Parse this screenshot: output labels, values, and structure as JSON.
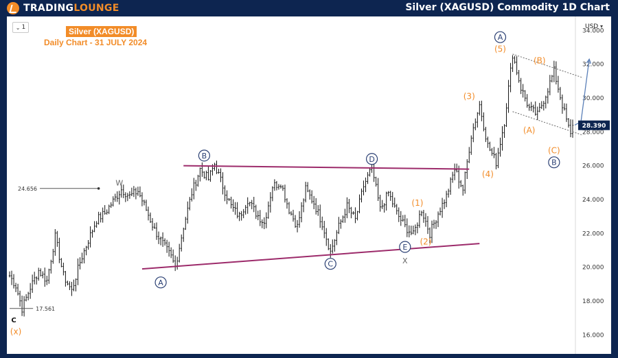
{
  "header": {
    "logo_word1": "TRADING",
    "logo_word2": "LOUNGE",
    "title": "Silver (XAGUSD) Commodity 1D Chart"
  },
  "chart_data": {
    "type": "candlestick",
    "title": "Silver (XAGUSD)",
    "subtitle": "Daily Chart - 31 JULY 2024",
    "interval": "1",
    "currency": "USD",
    "ylim": [
      15.2,
      34.5
    ],
    "y_ticks": [
      "34.000",
      "32.000",
      "30.000",
      "28.000",
      "26.000",
      "24.000",
      "22.000",
      "20.000",
      "18.000",
      "16.000"
    ],
    "y_tick_values": [
      34,
      32,
      30,
      28,
      26,
      24,
      22,
      20,
      18,
      16
    ],
    "last_price": 28.39,
    "last_price_label": "28.390",
    "price_path": [
      {
        "i": 0,
        "v": 19.5
      },
      {
        "i": 3,
        "v": 18.9
      },
      {
        "i": 6,
        "v": 17.56
      },
      {
        "i": 10,
        "v": 18.8
      },
      {
        "i": 14,
        "v": 19.8
      },
      {
        "i": 18,
        "v": 19.2
      },
      {
        "i": 22,
        "v": 21.8
      },
      {
        "i": 26,
        "v": 19.5
      },
      {
        "i": 30,
        "v": 18.6
      },
      {
        "i": 34,
        "v": 20.3
      },
      {
        "i": 38,
        "v": 21.6
      },
      {
        "i": 42,
        "v": 22.8
      },
      {
        "i": 46,
        "v": 23.2
      },
      {
        "i": 50,
        "v": 23.9
      },
      {
        "i": 54,
        "v": 24.6
      },
      {
        "i": 58,
        "v": 24.2
      },
      {
        "i": 62,
        "v": 24.5
      },
      {
        "i": 66,
        "v": 23.4
      },
      {
        "i": 70,
        "v": 22.2
      },
      {
        "i": 74,
        "v": 21.4
      },
      {
        "i": 78,
        "v": 20.6
      },
      {
        "i": 80,
        "v": 20.0
      },
      {
        "i": 84,
        "v": 22.4
      },
      {
        "i": 88,
        "v": 24.4
      },
      {
        "i": 92,
        "v": 25.8
      },
      {
        "i": 96,
        "v": 25.2
      },
      {
        "i": 99,
        "v": 26.1
      },
      {
        "i": 103,
        "v": 24.8
      },
      {
        "i": 107,
        "v": 23.6
      },
      {
        "i": 111,
        "v": 23.0
      },
      {
        "i": 115,
        "v": 24.0
      },
      {
        "i": 119,
        "v": 23.2
      },
      {
        "i": 123,
        "v": 22.6
      },
      {
        "i": 127,
        "v": 24.8
      },
      {
        "i": 131,
        "v": 25.0
      },
      {
        "i": 135,
        "v": 23.4
      },
      {
        "i": 139,
        "v": 22.4
      },
      {
        "i": 143,
        "v": 24.6
      },
      {
        "i": 147,
        "v": 23.8
      },
      {
        "i": 151,
        "v": 22.6
      },
      {
        "i": 155,
        "v": 20.9
      },
      {
        "i": 159,
        "v": 22.4
      },
      {
        "i": 163,
        "v": 23.6
      },
      {
        "i": 167,
        "v": 22.8
      },
      {
        "i": 171,
        "v": 24.8
      },
      {
        "i": 175,
        "v": 25.9
      },
      {
        "i": 179,
        "v": 23.4
      },
      {
        "i": 183,
        "v": 24.4
      },
      {
        "i": 187,
        "v": 23.2
      },
      {
        "i": 191,
        "v": 22.4
      },
      {
        "i": 195,
        "v": 21.9
      },
      {
        "i": 199,
        "v": 23.4
      },
      {
        "i": 203,
        "v": 22.0
      },
      {
        "i": 207,
        "v": 23.2
      },
      {
        "i": 211,
        "v": 24.2
      },
      {
        "i": 215,
        "v": 25.8
      },
      {
        "i": 219,
        "v": 24.6
      },
      {
        "i": 223,
        "v": 27.8
      },
      {
        "i": 227,
        "v": 29.6
      },
      {
        "i": 231,
        "v": 27.2
      },
      {
        "i": 235,
        "v": 26.2
      },
      {
        "i": 239,
        "v": 28.6
      },
      {
        "i": 243,
        "v": 32.6
      },
      {
        "i": 247,
        "v": 30.6
      },
      {
        "i": 251,
        "v": 29.4
      },
      {
        "i": 255,
        "v": 29.0
      },
      {
        "i": 259,
        "v": 30.2
      },
      {
        "i": 263,
        "v": 31.6
      },
      {
        "i": 267,
        "v": 29.6
      },
      {
        "i": 271,
        "v": 27.8
      },
      {
        "i": 272,
        "v": 28.39
      }
    ],
    "n_bars": 273,
    "trendlines": [
      {
        "from": {
          "i": 84,
          "v": 26.0
        },
        "to": {
          "i": 222,
          "v": 25.8
        },
        "color": "#9c2a6a"
      },
      {
        "from": {
          "i": 64,
          "v": 19.9
        },
        "to": {
          "i": 227,
          "v": 21.4
        },
        "color": "#9c2a6a"
      }
    ],
    "channel_lines": [
      {
        "from": {
          "i": 243,
          "v": 32.6
        },
        "to": {
          "i": 277,
          "v": 31.2
        }
      },
      {
        "from": {
          "i": 243,
          "v": 29.2
        },
        "to": {
          "i": 277,
          "v": 27.8
        }
      }
    ],
    "projection_arrows": [
      {
        "points": [
          {
            "i": 273,
            "v": 28.4
          },
          {
            "i": 276,
            "v": 28.6
          },
          {
            "i": 280,
            "v": 32.3
          }
        ]
      }
    ],
    "price_markers": [
      {
        "label": "24.656",
        "i_start": 2,
        "i_end": 43,
        "v": 24.656,
        "dot": true
      },
      {
        "label": "17.561",
        "i_start": 0,
        "i_end": 10,
        "v": 17.561
      }
    ],
    "wave_labels": [
      {
        "text": "W",
        "i": 53,
        "v": 25.0,
        "style": "plain"
      },
      {
        "text": "A",
        "i": 73,
        "v": 19.1,
        "style": "circle"
      },
      {
        "text": "B",
        "i": 94,
        "v": 26.6,
        "style": "circle"
      },
      {
        "text": "C",
        "i": 155,
        "v": 20.2,
        "style": "circle"
      },
      {
        "text": "D",
        "i": 175,
        "v": 26.4,
        "style": "circle"
      },
      {
        "text": "E",
        "i": 191,
        "v": 21.2,
        "style": "circle"
      },
      {
        "text": "X",
        "i": 191,
        "v": 20.4,
        "style": "plain"
      },
      {
        "text": "(1)",
        "i": 197,
        "v": 23.8,
        "style": "orange"
      },
      {
        "text": "(2)",
        "i": 201,
        "v": 21.5,
        "style": "orange"
      },
      {
        "text": "(3)",
        "i": 222,
        "v": 30.1,
        "style": "orange"
      },
      {
        "text": "(4)",
        "i": 231,
        "v": 25.5,
        "style": "orange"
      },
      {
        "text": "A",
        "i": 237,
        "v": 33.6,
        "style": "circle"
      },
      {
        "text": "(5)",
        "i": 237,
        "v": 32.9,
        "style": "orange"
      },
      {
        "text": "(B)",
        "i": 256,
        "v": 32.2,
        "style": "orange"
      },
      {
        "text": "(A)",
        "i": 251,
        "v": 28.1,
        "style": "orange"
      },
      {
        "text": "(C)",
        "i": 263,
        "v": 26.9,
        "style": "orange"
      },
      {
        "text": "B",
        "i": 263,
        "v": 26.2,
        "style": "circle"
      },
      {
        "text": "C",
        "i": 2,
        "v": 16.9,
        "style": "plain-dark"
      },
      {
        "text": "(x)",
        "i": 3,
        "v": 16.2,
        "style": "orange"
      }
    ]
  }
}
